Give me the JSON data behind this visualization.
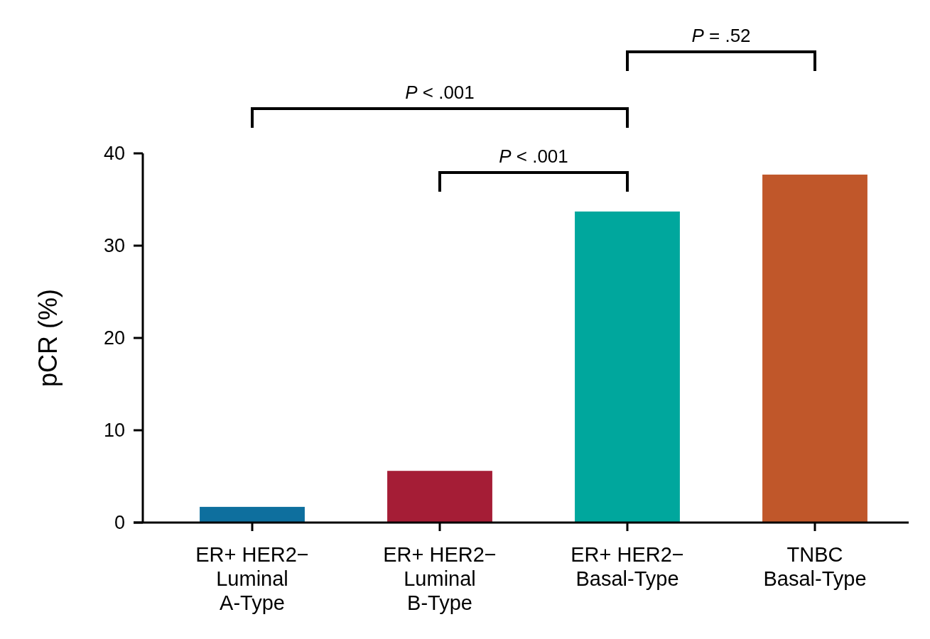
{
  "chart_data": {
    "type": "bar",
    "ylabel": "pCR (%)",
    "categories": [
      "ER+ HER2−\nLuminal\nA-Type",
      "ER+ HER2−\nLuminal\nB-Type",
      "ER+ HER2−\nBasal-Type",
      "TNBC\nBasal-Type"
    ],
    "values": [
      1.7,
      5.6,
      33.7,
      37.7
    ],
    "colors": [
      "#0e6f9e",
      "#a51d36",
      "#00a79d",
      "#c0572a"
    ],
    "ylim": [
      0,
      40
    ],
    "yticks": [
      0,
      10,
      20,
      30,
      40
    ],
    "grid": false,
    "annotations": [
      "P < .001",
      "P < .001",
      "P = .52"
    ]
  }
}
